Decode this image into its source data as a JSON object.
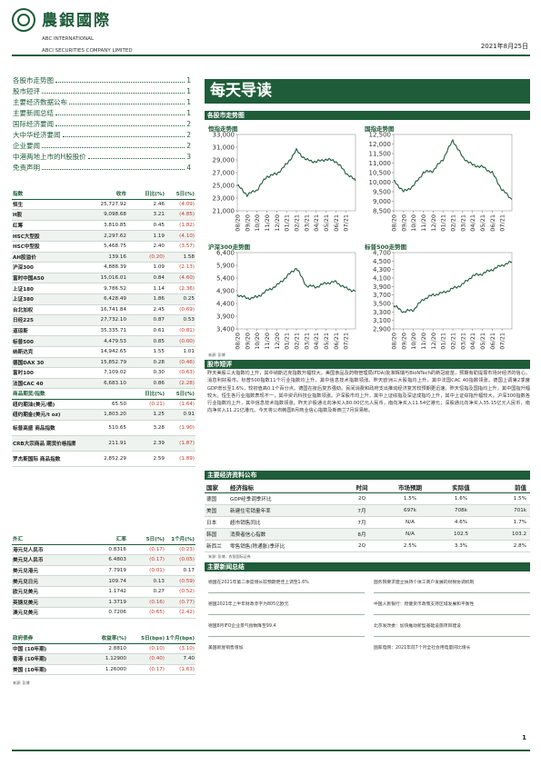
{
  "header": {
    "company_cn": "農銀國際",
    "company_en1": "ABC INTERNATIONAL",
    "company_en2": "ABCI SECURITIES COMPANY LIMITED",
    "date": "2021年8月25日"
  },
  "toc": [
    {
      "label": "各股市走势图",
      "page": "1"
    },
    {
      "label": "股市短评",
      "page": "1"
    },
    {
      "label": "主要经济数据公布",
      "page": "1"
    },
    {
      "label": "主要新闻总结",
      "page": "1"
    },
    {
      "label": "国际经济要闻",
      "page": "2"
    },
    {
      "label": "大中华经济要闻",
      "page": "2"
    },
    {
      "label": "企业要闻",
      "page": "2"
    },
    {
      "label": "中港两地上市的H股股价",
      "page": "3"
    },
    {
      "label": "免责声明",
      "page": "4"
    }
  ],
  "index_table": {
    "headers": [
      "指数",
      "收市",
      "日比(%)",
      "5日(%)"
    ],
    "rows": [
      [
        "恒生",
        "25,727.92",
        "2.46",
        "(4.09)"
      ],
      [
        "H股",
        "9,098.68",
        "3.21",
        "(4.85)"
      ],
      [
        "红筹",
        "3,810.85",
        "0.45",
        "(1.82)"
      ],
      [
        "HSC大型股",
        "2,297.62",
        "1.19",
        "(4.10)"
      ],
      [
        "HSC中型股",
        "5,468.75",
        "2.40",
        "(3.57)"
      ],
      [
        "AH股溢价",
        "139.16",
        "(0.20)",
        "1.58"
      ],
      [
        "沪深300",
        "4,888.39",
        "1.09",
        "(2.13)"
      ],
      [
        "富时中国A50",
        "15,016.01",
        "0.84",
        "(4.60)"
      ],
      [
        "上证180",
        "9,786.52",
        "1.14",
        "(2.36)"
      ],
      [
        "上证380",
        "6,428.49",
        "1.86",
        "0.25"
      ],
      [
        "台北加权",
        "16,741.84",
        "2.45",
        "(0.69)"
      ],
      [
        "日经225",
        "27,732.10",
        "0.87",
        "0.53"
      ],
      [
        "道琼斯",
        "35,335.71",
        "0.61",
        "(0.81)"
      ],
      [
        "标普500",
        "4,479.53",
        "0.85",
        "(0.00)"
      ],
      [
        "纳斯达克",
        "14,942.65",
        "1.55",
        "1.01"
      ],
      [
        "德国DAX 30",
        "15,852.79",
        "0.28",
        "(0.46)"
      ],
      [
        "富时100",
        "7,109.02",
        "0.30",
        "(0.63)"
      ],
      [
        "法国CAC 40",
        "6,683.10",
        "0.86",
        "(2.28)"
      ]
    ]
  },
  "commodity_table": {
    "headers": [
      "商品期货/指数",
      "",
      "日比(%)",
      "5日(%)"
    ],
    "rows": [
      [
        "纽约期油(美元/桶)",
        "65.50",
        "(0.21)",
        "(1.64)"
      ],
      [
        "纽约期金(美元/t oz)",
        "1,803.20",
        "1.25",
        "0.91"
      ],
      [
        "标普高盛 商品指数",
        "510.65",
        "3.28",
        "(1.90)"
      ],
      [
        "CRB大宗商品 期货价格指数",
        "211.91",
        "2.39",
        "(1.87)"
      ],
      [
        "罗杰斯国际 商品指数",
        "2,852.29",
        "2.59",
        "(1.89)"
      ]
    ]
  },
  "fx_table": {
    "headers": [
      "外汇",
      "汇率",
      "5日(%)",
      "1个月(%)"
    ],
    "rows": [
      [
        "港元兑人民币",
        "0.8316",
        "(0.17)",
        "(0.23)"
      ],
      [
        "美元兑人民币",
        "6.4803",
        "(0.17)",
        "(0.05)"
      ],
      [
        "美元兑港元",
        "7.7919",
        "(0.01)",
        "0.17"
      ],
      [
        "美元兑日元",
        "109.74",
        "0.13",
        "(0.59)"
      ],
      [
        "欧元兑美元",
        "1.1742",
        "0.27",
        "(0.52)"
      ],
      [
        "英镑兑美元",
        "1.3719",
        "(0.16)",
        "(0.77)"
      ],
      [
        "澳元兑美元",
        "0.7206",
        "(0.65)",
        "(2.42)"
      ]
    ]
  },
  "bond_table": {
    "headers": [
      "政府债券",
      "收益率(%)",
      "5日(bps)",
      "1个月(bps)"
    ],
    "rows": [
      [
        "中国 (10年期)",
        "2.8810",
        "(0.10)",
        "(3.10)"
      ],
      [
        "香港 (10年期)",
        "1.12900",
        "(0.40)",
        "7.40"
      ],
      [
        "美国 (10年期)",
        "1.26000",
        "(0.17)",
        "(1.63)"
      ]
    ]
  },
  "source_label": "来源: 彭博",
  "main_title": "每天导读",
  "market_section": "各股市走势图",
  "chart_data": [
    {
      "type": "line",
      "title": "恒指走势图",
      "x": [
        "08/20",
        "09/20",
        "10/20",
        "11/20",
        "12/20",
        "01/21",
        "02/21",
        "03/21",
        "04/21",
        "05/21",
        "06/21",
        "07/21",
        "08/21"
      ],
      "values": [
        25000,
        23500,
        24300,
        26400,
        26800,
        28300,
        30500,
        29000,
        28700,
        29100,
        28800,
        27000,
        25700
      ],
      "ylim": [
        21000,
        33000
      ],
      "yticks": [
        "33,000",
        "31,000",
        "29,000",
        "27,000",
        "25,000",
        "23,000",
        "21,000"
      ],
      "xticks": [
        "08/20",
        "09/20",
        "10/20",
        "11/20",
        "12/20",
        "01/21",
        "02/21",
        "03/21",
        "04/21",
        "05/21",
        "06/21",
        "07/21"
      ],
      "color": "#1f5c3a"
    },
    {
      "type": "line",
      "title": "国指走势图",
      "x": [
        "08/20",
        "09/20",
        "10/20",
        "11/20",
        "12/20",
        "01/21",
        "02/21",
        "03/21",
        "04/21",
        "05/21",
        "06/21",
        "07/21",
        "08/21"
      ],
      "values": [
        10100,
        9500,
        9800,
        10500,
        10600,
        11200,
        12200,
        11300,
        10900,
        10800,
        10500,
        9600,
        9100
      ],
      "ylim": [
        8500,
        12500
      ],
      "yticks": [
        "12,500",
        "12,000",
        "11,500",
        "11,000",
        "10,500",
        "10,000",
        "9,500",
        "9,000",
        "8,500"
      ],
      "xticks": [
        "08/20",
        "09/20",
        "10/20",
        "11/20",
        "12/20",
        "01/21",
        "02/21",
        "03/21",
        "04/21",
        "05/21",
        "06/21",
        "07/21"
      ],
      "color": "#1f5c3a"
    },
    {
      "type": "line",
      "title": "沪深300走势图",
      "x": [
        "08/20",
        "09/20",
        "10/20",
        "11/20",
        "12/20",
        "01/21",
        "02/21",
        "03/21",
        "04/21",
        "05/21",
        "06/21",
        "07/21",
        "08/21"
      ],
      "values": [
        4750,
        4600,
        4650,
        4900,
        5100,
        5450,
        5800,
        5100,
        5050,
        5200,
        5250,
        5000,
        4880
      ],
      "ylim": [
        3400,
        6400
      ],
      "yticks": [
        "6,400",
        "5,900",
        "5,400",
        "4,900",
        "4,400",
        "3,900",
        "3,400"
      ],
      "xticks": [
        "08/20",
        "09/20",
        "10/20",
        "11/20",
        "12/20",
        "01/21",
        "02/21",
        "03/21",
        "04/21",
        "05/21",
        "06/21",
        "07/21"
      ],
      "color": "#1f5c3a"
    },
    {
      "type": "line",
      "title": "标普500走势图",
      "x": [
        "08/20",
        "09/20",
        "10/20",
        "11/20",
        "12/20",
        "01/21",
        "02/21",
        "03/21",
        "04/21",
        "05/21",
        "06/21",
        "07/21",
        "08/21"
      ],
      "values": [
        3450,
        3300,
        3350,
        3600,
        3700,
        3750,
        3850,
        3950,
        4150,
        4200,
        4300,
        4400,
        4480
      ],
      "ylim": [
        2900,
        4700
      ],
      "yticks": [
        "4,700",
        "4,500",
        "4,300",
        "4,100",
        "3,900",
        "3,700",
        "3,500",
        "3,300",
        "3,100",
        "2,900"
      ],
      "xticks": [
        "08/20",
        "09/20",
        "10/20",
        "11/20",
        "12/20",
        "01/21",
        "02/21",
        "03/21",
        "04/21",
        "05/21",
        "06/21",
        "07/21"
      ],
      "color": "#1f5c3a"
    }
  ],
  "chart_source": "来源: 彭博",
  "commentary_section": "股市短评",
  "commentary_text": "昨天美股三大指数均上升，其中纳斯达克指数升幅较大。美国食品及药物管理局(FDA)批准辉瑞与BioNTech的新冠疫苗，预期有助提振市场对经济的信心，消息利好股市。标普500指数11个行业指数均上升，其中信息技术指数领涨。昨天欧洲三大股指均上升，其中法国CAC 40指数领涨。德国上调第2季度GDP增长至1.6%，较初值高0.1个百分点。德国在疫后复苏强劲。民间消费和政府支出推动经济复苏较预期更迅速。昨天恒指及国指均上升，其中国指升幅较大。恒生各行业指数表现不一，其中资讯科技业指数领涨。沪深股市均上升，其中上证综指及深证成指均上升，其中上证综指升幅较大。沪深300指数各行业指数均上升，其中信息技术指数领涨。昨天沪股通北向净买入80.00亿元人民币，南向净买入11.54亿港元；深股通北向净买入35.15亿元人民币，南向净买入11.21亿港元。今天将公布韩国8月商业信心指数及新西兰7月贸易帐。",
  "econ_section": "主要经济资料公布",
  "econ_table": {
    "headers": [
      "国家",
      "经济指标",
      "时间",
      "市场预期",
      "实际值",
      "前值"
    ],
    "rows": [
      [
        "德国",
        "GDP经季调季环比",
        "2Q",
        "1.5%",
        "1.6%",
        "1.5%"
      ],
      [
        "美国",
        "新建住宅销量年率",
        "7月",
        "697k",
        "708k",
        "701k"
      ],
      [
        "日本",
        "超市销售同比",
        "7月",
        "N/A",
        "4.6%",
        "1.7%"
      ],
      [
        "韩国",
        "消费者信心指数",
        "8月",
        "N/A",
        "102.5",
        "103.2"
      ],
      [
        "新西兰",
        "零售销售(除通胀)季环比",
        "2Q",
        "2.5%",
        "3.3%",
        "2.8%"
      ]
    ]
  },
  "econ_source": "来源: 彭博、农银国际证券",
  "news_section": "主要新闻总结",
  "news": {
    "left": [
      "德国在2021年第二季度增长较预期更佳上调至1.6%",
      "德国2021年上半年财政赤字为805亿欧元",
      "德国8月IFO企业景气指数降至99.4",
      "美国新屋销售增加"
    ],
    "right": [
      "国务院要求建立扶持个体工商户发展的财税协调机制",
      "中国人民银行：稳健货币政策支持区域发展和平衡性",
      "北京发改委：加快推动新型基础设施项目建设",
      "国家电网：2021年前7个月全社会用电量同比增长"
    ]
  },
  "page_number": "1"
}
